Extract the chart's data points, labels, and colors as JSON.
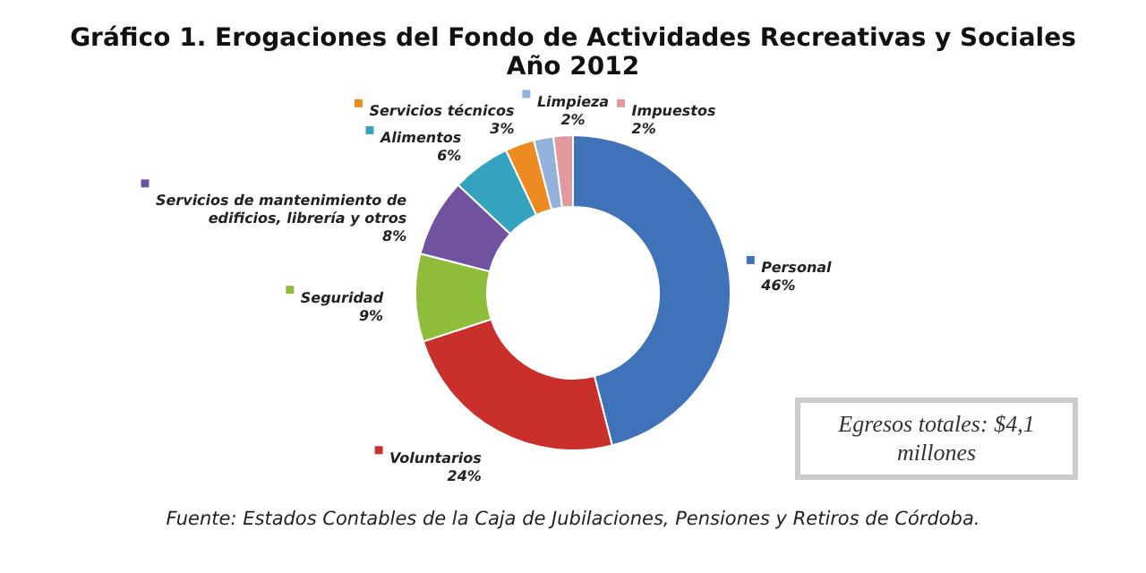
{
  "chart_data": {
    "type": "donut",
    "title": [
      "Gráfico 1. Erogaciones del Fondo de Actividades Recreativas y Sociales",
      "Año 2012"
    ],
    "categories": [
      "Personal",
      "Voluntarios",
      "Seguridad",
      "Servicios de mantenimiento de edificios, librería y otros",
      "Alimentos",
      "Servicios técnicos",
      "Limpieza",
      "Impuestos"
    ],
    "values": [
      46,
      24,
      9,
      8,
      6,
      3,
      2,
      2
    ],
    "value_labels": [
      "46%",
      "24%",
      "9%",
      "8%",
      "6%",
      "3%",
      "2%",
      "2%"
    ],
    "legend": "left",
    "colors": [
      "#3f72b8",
      "#c9302c",
      "#8fbc3a",
      "#7052a0",
      "#35a3c0",
      "#ee8a22",
      "#92b2dc",
      "#e39a9e"
    ],
    "annotations": [
      "Egresos totales: $4,1 millones",
      "Fuente: Estados Contables de la Caja de Jubilaciones, Pensiones y Retiros de Córdoba."
    ]
  }
}
